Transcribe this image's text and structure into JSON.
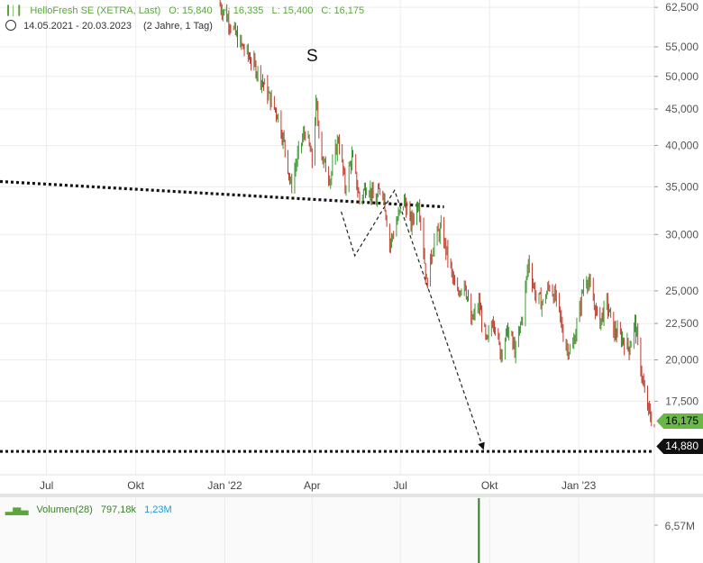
{
  "header": {
    "instrument": "HelloFresh SE (XETRA, Last)",
    "open": "O: 15,840",
    "high": "H: 16,335",
    "low": "L: 15,400",
    "close": "C: 16,175",
    "date_range": "14.05.2021 - 20.03.2023",
    "period": "(2 Jahre, 1 Tag)"
  },
  "volume_header": {
    "label": "Volumen(28)",
    "value1": "797,18k",
    "value2": "1,23M"
  },
  "badges": {
    "last_price": "16,175",
    "target_line": "14,880"
  },
  "colors": {
    "up": "#3f9a34",
    "down": "#c0392b",
    "header_green": "#5aa63c",
    "badge_green": "#69b845",
    "grid": "#ececec"
  },
  "chart_data": {
    "type": "line",
    "title": "",
    "y_scale": "log",
    "ylim": [
      13.8,
      64
    ],
    "y_ticks": [
      "62,500",
      "55,000",
      "50,000",
      "45,000",
      "40,000",
      "35,000",
      "30,000",
      "25,000",
      "22,500",
      "20,000",
      "17,500"
    ],
    "y_tick_values": [
      62.5,
      55,
      50,
      45,
      40,
      35,
      30,
      25,
      22.5,
      20,
      17.5
    ],
    "x_ticks": [
      "Jul",
      "Okt",
      "Jan '22",
      "Apr",
      "Jul",
      "Okt",
      "Jan '23"
    ],
    "x_tick_dates": [
      "2021-07-01",
      "2021-10-01",
      "2022-01-01",
      "2022-04-01",
      "2022-07-01",
      "2022-10-01",
      "2023-01-01"
    ],
    "x_range": [
      "2021-05-14",
      "2023-03-20"
    ],
    "series": [
      {
        "values": [
          [
            "2021-12-25",
            63.5
          ],
          [
            "2022-01-05",
            60.0
          ],
          [
            "2022-01-15",
            56.0
          ],
          [
            "2022-01-25",
            53.5
          ],
          [
            "2022-02-05",
            50.5
          ],
          [
            "2022-02-15",
            47.0
          ],
          [
            "2022-02-25",
            44.0
          ],
          [
            "2022-03-05",
            39.0
          ],
          [
            "2022-03-10",
            35.0
          ],
          [
            "2022-03-20",
            40.0
          ],
          [
            "2022-03-25",
            42.0
          ],
          [
            "2022-04-01",
            38.0
          ],
          [
            "2022-04-05",
            45.5
          ],
          [
            "2022-04-12",
            38.0
          ],
          [
            "2022-04-20",
            36.0
          ],
          [
            "2022-04-28",
            41.0
          ],
          [
            "2022-05-05",
            35.0
          ],
          [
            "2022-05-12",
            38.5
          ],
          [
            "2022-05-20",
            33.5
          ],
          [
            "2022-05-28",
            35.5
          ],
          [
            "2022-06-05",
            33.0
          ],
          [
            "2022-06-12",
            35.5
          ],
          [
            "2022-06-20",
            29.0
          ],
          [
            "2022-06-28",
            31.5
          ],
          [
            "2022-07-05",
            33.5
          ],
          [
            "2022-07-12",
            31.0
          ],
          [
            "2022-07-20",
            33.5
          ],
          [
            "2022-07-28",
            25.5
          ],
          [
            "2022-08-05",
            29.5
          ],
          [
            "2022-08-12",
            30.5
          ],
          [
            "2022-08-20",
            27.5
          ],
          [
            "2022-08-28",
            24.5
          ],
          [
            "2022-09-05",
            26.0
          ],
          [
            "2022-09-12",
            22.5
          ],
          [
            "2022-09-20",
            24.0
          ],
          [
            "2022-09-28",
            21.0
          ],
          [
            "2022-10-05",
            23.0
          ],
          [
            "2022-10-12",
            20.5
          ],
          [
            "2022-10-20",
            22.0
          ],
          [
            "2022-10-28",
            20.5
          ],
          [
            "2022-11-05",
            23.5
          ],
          [
            "2022-11-10",
            27.5
          ],
          [
            "2022-11-18",
            24.5
          ],
          [
            "2022-11-25",
            24.0
          ],
          [
            "2022-12-02",
            25.5
          ],
          [
            "2022-12-10",
            24.0
          ],
          [
            "2022-12-18",
            21.0
          ],
          [
            "2022-12-25",
            20.5
          ],
          [
            "2023-01-02",
            23.5
          ],
          [
            "2023-01-08",
            26.5
          ],
          [
            "2023-01-15",
            24.5
          ],
          [
            "2023-01-22",
            22.5
          ],
          [
            "2023-01-30",
            24.0
          ],
          [
            "2023-02-06",
            22.0
          ],
          [
            "2023-02-14",
            21.5
          ],
          [
            "2023-02-22",
            20.8
          ],
          [
            "2023-02-28",
            22.5
          ],
          [
            "2023-03-05",
            20.0
          ],
          [
            "2023-03-10",
            17.8
          ],
          [
            "2023-03-15",
            16.8
          ],
          [
            "2023-03-20",
            16.175
          ]
        ]
      }
    ],
    "annotations": {
      "label": "S",
      "label_point": [
        "2022-04-01",
        52.5
      ],
      "neckline": [
        [
          "2021-05-14",
          35.6
        ],
        [
          "2022-08-15",
          32.8
        ]
      ],
      "pattern": [
        [
          "2022-05-01",
          32.3
        ],
        [
          "2022-05-15",
          28.0
        ],
        [
          "2022-06-25",
          34.6
        ],
        [
          "2022-09-25",
          14.95
        ]
      ],
      "target": 14.88
    },
    "volume": {
      "y_tick": "6,57M",
      "y_tick_value": 6.57,
      "spike_date": "2022-09-20"
    }
  }
}
